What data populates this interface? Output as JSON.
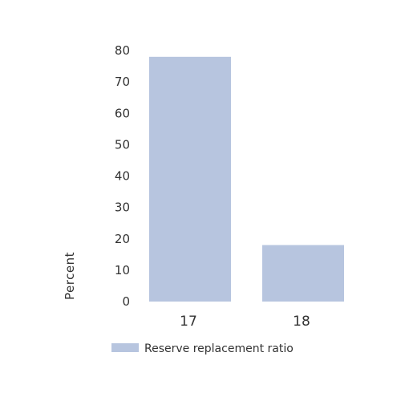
{
  "chart_data": {
    "type": "bar",
    "categories": [
      "17",
      "18"
    ],
    "series": [
      {
        "name": "Reserve replacement ratio",
        "values": [
          78,
          18
        ],
        "color": "#b7c5df"
      }
    ],
    "ylabel": "Percent",
    "xlabel": "",
    "ylim": [
      0,
      80
    ],
    "yticks": [
      0,
      10,
      20,
      30,
      40,
      50,
      60,
      70,
      80
    ],
    "grid": false,
    "legend_position": "bottom"
  }
}
